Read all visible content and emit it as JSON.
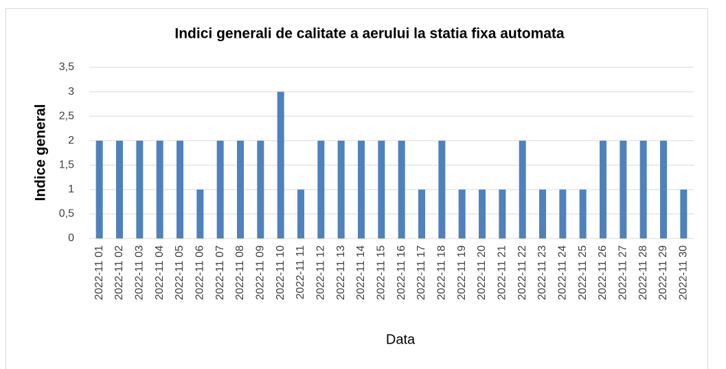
{
  "chart_data": {
    "type": "bar",
    "title": "Indici generali de calitate a aerului la statia fixa automata",
    "x_label": "Data",
    "y_label": "Indice general",
    "categories": [
      "2022-11 01",
      "2022-11 02",
      "2022-11 03",
      "2022-11 04",
      "2022-11 05",
      "2022-11 06",
      "2022-11 07",
      "2022-11 08",
      "2022-11 09",
      "2022-11 10",
      "2022-11 11",
      "2022-11 12",
      "2022-11 13",
      "2022-11 14",
      "2022-11 15",
      "2022-11 16",
      "2022-11 17",
      "2022-11 18",
      "2022-11 19",
      "2022-11 20",
      "2022-11 21",
      "2022-11 22",
      "2022-11 23",
      "2022-11 24",
      "2022-11 25",
      "2022-11 26",
      "2022-11 27",
      "2022-11 28",
      "2022-11 29",
      "2022-11 30"
    ],
    "values": [
      2,
      2,
      2,
      2,
      2,
      1,
      2,
      2,
      2,
      3,
      1,
      2,
      2,
      2,
      2,
      2,
      1,
      2,
      1,
      1,
      1,
      2,
      1,
      1,
      1,
      2,
      2,
      2,
      2,
      1
    ],
    "color": "#4f81bd",
    "ylim": [
      0,
      3.5
    ],
    "yticks": [
      0,
      {
        "value": 0.5,
        "label": "0,5"
      },
      1,
      {
        "value": 1.5,
        "label": "1,5"
      },
      2,
      {
        "value": 2.5,
        "label": "2,5"
      },
      3,
      {
        "value": 3.5,
        "label": "3,5"
      }
    ],
    "grid": true
  }
}
